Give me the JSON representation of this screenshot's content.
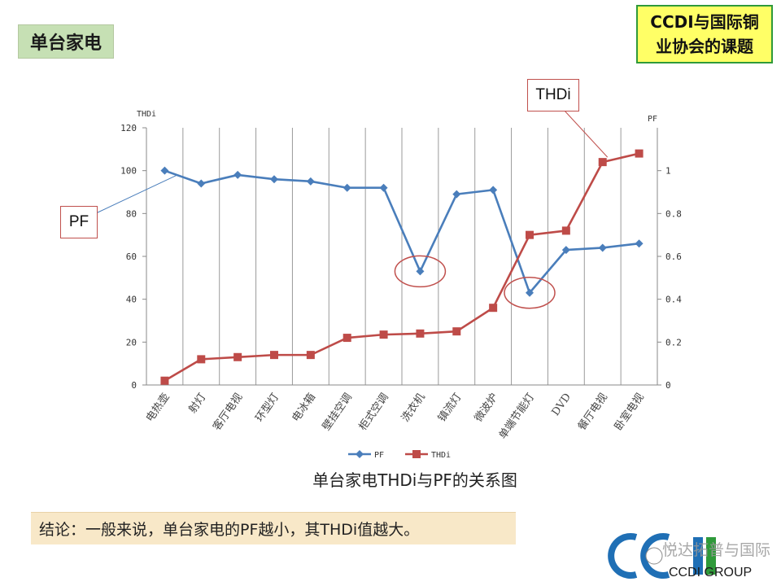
{
  "header": {
    "tag": "单台家电",
    "topic": "CCDI与国际铜业协会的课题"
  },
  "callouts": {
    "pf": "PF",
    "thdi": "THDi"
  },
  "caption": "单台家电THDi与PF的关系图",
  "conclusion": "结论：一般来说，单台家电的PF越小，其THDi值越大。",
  "watermark": {
    "brand": "CCDI GROUP",
    "overlay": "悦达拓普与国际"
  },
  "colors": {
    "pf": "#4a7ebb",
    "thdi": "#be4b48",
    "highlight": "#c0504d",
    "tag_bg": "#c6e0b4",
    "topic_bg": "#ffff66",
    "conclusion_bg": "#f8e8c8"
  },
  "chart_data": {
    "type": "line",
    "categories": [
      "电热壶",
      "射灯",
      "客厅电视",
      "环型灯",
      "电冰箱",
      "壁挂空调",
      "柜式空调",
      "洗衣机",
      "镇流灯",
      "微波炉",
      "单端节能灯",
      "DVD",
      "餐厅电视",
      "卧室电视"
    ],
    "ylabel_left": "THDi",
    "ylabel_right": "PF",
    "ylim_left": [
      0,
      120
    ],
    "yticks_left": [
      "0",
      "20",
      "40",
      "60",
      "80",
      "100",
      "120"
    ],
    "ylim_right": [
      0,
      1.2
    ],
    "yticks_right": [
      "0",
      "0.2",
      "0.4",
      "0.6",
      "0.8",
      "1"
    ],
    "grid": "vertical",
    "legend_position": "bottom",
    "series": [
      {
        "name": "PF",
        "axis": "right",
        "marker": "diamond",
        "values": [
          1.0,
          0.94,
          0.98,
          0.96,
          0.95,
          0.92,
          0.92,
          0.53,
          0.89,
          0.91,
          0.43,
          0.63,
          0.64,
          0.66
        ]
      },
      {
        "name": "THDi",
        "axis": "left",
        "marker": "square",
        "values": [
          2,
          12,
          13,
          14,
          14,
          22,
          23.5,
          24,
          25,
          36,
          70,
          72,
          104,
          108
        ]
      }
    ],
    "highlights": [
      {
        "category": "洗衣机",
        "series": "PF"
      },
      {
        "category": "单端节能灯",
        "series": "PF"
      }
    ]
  }
}
